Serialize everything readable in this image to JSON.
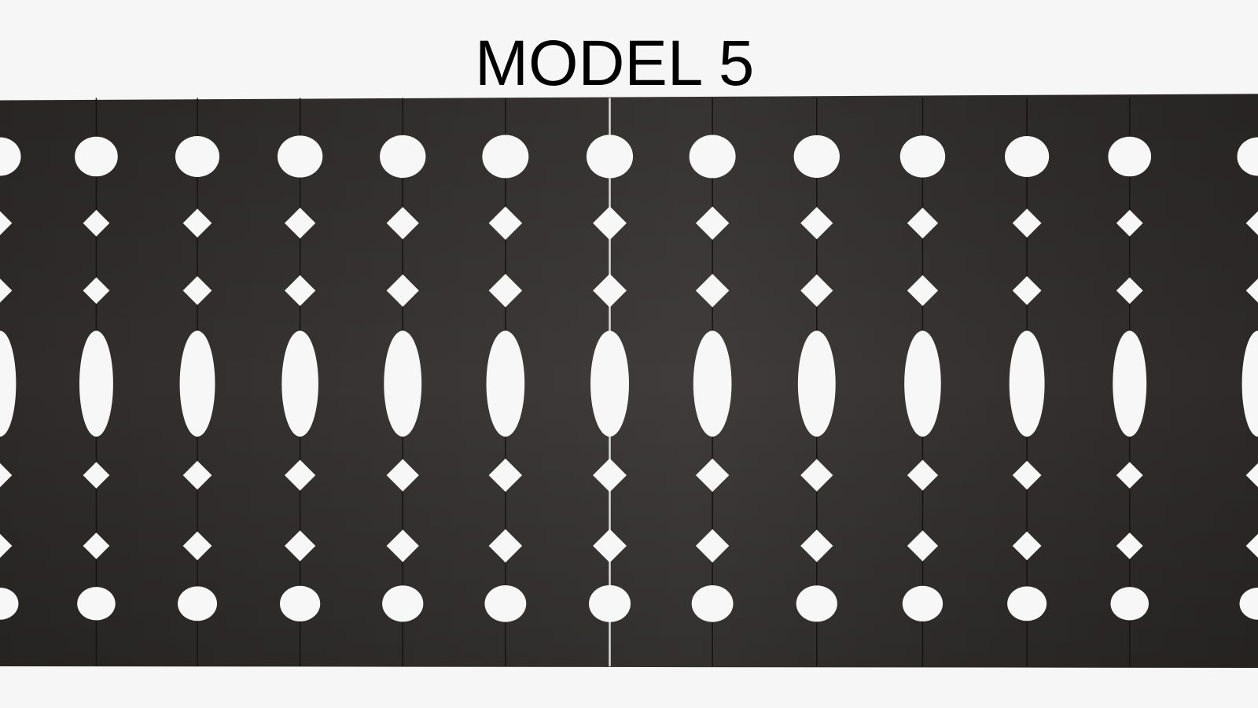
{
  "title": "MODEL 5"
}
